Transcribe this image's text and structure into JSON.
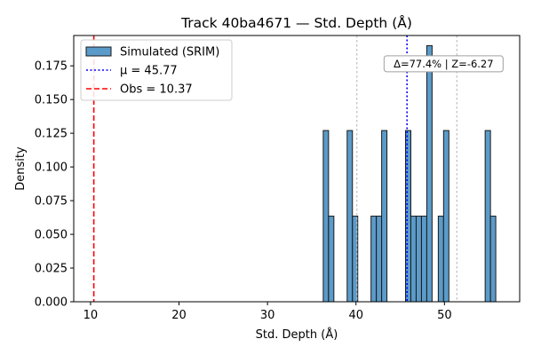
{
  "chart_data": {
    "type": "bar",
    "title": "Track 40ba4671 — Std. Depth (Å)",
    "xlabel": "Std. Depth (Å)",
    "ylabel": "Density",
    "xlim": [
      8.1,
      58.5
    ],
    "ylim": [
      0,
      0.1975
    ],
    "xticks": [
      10,
      20,
      30,
      40,
      50
    ],
    "yticks": [
      0.0,
      0.025,
      0.05,
      0.075,
      0.1,
      0.125,
      0.15,
      0.175
    ],
    "ytick_labels": [
      "0.000",
      "0.025",
      "0.050",
      "0.075",
      "0.100",
      "0.125",
      "0.150",
      "0.175"
    ],
    "bin_width": 0.6,
    "bins": [
      {
        "x0": 36.3,
        "value": 0.127
      },
      {
        "x0": 36.9,
        "value": 0.0635
      },
      {
        "x0": 39.0,
        "value": 0.127
      },
      {
        "x0": 39.6,
        "value": 0.0635
      },
      {
        "x0": 41.7,
        "value": 0.0635
      },
      {
        "x0": 42.3,
        "value": 0.0635
      },
      {
        "x0": 42.9,
        "value": 0.127
      },
      {
        "x0": 45.6,
        "value": 0.127
      },
      {
        "x0": 46.2,
        "value": 0.0635
      },
      {
        "x0": 46.8,
        "value": 0.0635
      },
      {
        "x0": 47.4,
        "value": 0.0635
      },
      {
        "x0": 48.0,
        "value": 0.19
      },
      {
        "x0": 49.3,
        "value": 0.0635
      },
      {
        "x0": 49.9,
        "value": 0.127
      },
      {
        "x0": 54.6,
        "value": 0.127
      },
      {
        "x0": 55.2,
        "value": 0.0635
      }
    ],
    "mean": 45.77,
    "observed": 10.37,
    "sigma_lines": [
      40.1,
      51.4
    ],
    "legend": {
      "placement": "top-left",
      "entries": [
        {
          "label": "Simulated (SRIM)",
          "style": "bar"
        },
        {
          "label": "μ = 45.77",
          "style": "dotted"
        },
        {
          "label": "Obs = 10.37",
          "style": "dashed"
        }
      ]
    },
    "annotation": "Δ=77.4% | Z=-6.27",
    "annotation_x": 49.9,
    "annotation_y": 0.1765,
    "colors": {
      "bar_fill": "#5b9bc9",
      "bar_edge": "#1a1a1a",
      "mean_line": "#0000ff",
      "obs_line": "#ff0000",
      "sigma_line": "#bdbdbd"
    },
    "grid": false
  }
}
